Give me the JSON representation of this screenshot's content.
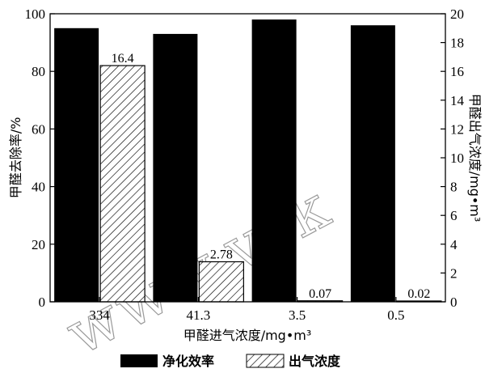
{
  "colors": {
    "solid_bar": "#000000",
    "hatch_bar_fill": "#ffffff",
    "hatch_stroke": "#000000",
    "axis": "#000000",
    "watermark": "#9a9a9a"
  },
  "chart_data": {
    "type": "bar",
    "categories": [
      "334",
      "41.3",
      "3.5",
      "0.5"
    ],
    "xlabel": "甲醛进气浓度/mg•m³",
    "ylabel": "甲醛去除率/%",
    "y2label": "甲醛出气浓度/mg•m³",
    "ylim": [
      0,
      100
    ],
    "y2lim": [
      0,
      20
    ],
    "yticks": [
      0,
      20,
      40,
      60,
      80,
      100
    ],
    "y2ticks": [
      0,
      2,
      4,
      6,
      8,
      10,
      12,
      14,
      16,
      18,
      20
    ],
    "grid": false,
    "legend_position": "bottom",
    "series": [
      {
        "name": "净化效率",
        "axis": "left",
        "style": "solid",
        "values": [
          95,
          93,
          98,
          96
        ],
        "labels": [
          "",
          "",
          "",
          ""
        ]
      },
      {
        "name": "出气浓度",
        "axis": "right",
        "style": "hatch",
        "values": [
          16.4,
          2.78,
          0.07,
          0.02
        ],
        "labels": [
          "16.4",
          "2.78",
          "0.07",
          "0.02"
        ]
      }
    ],
    "watermark": "www.vsk"
  }
}
